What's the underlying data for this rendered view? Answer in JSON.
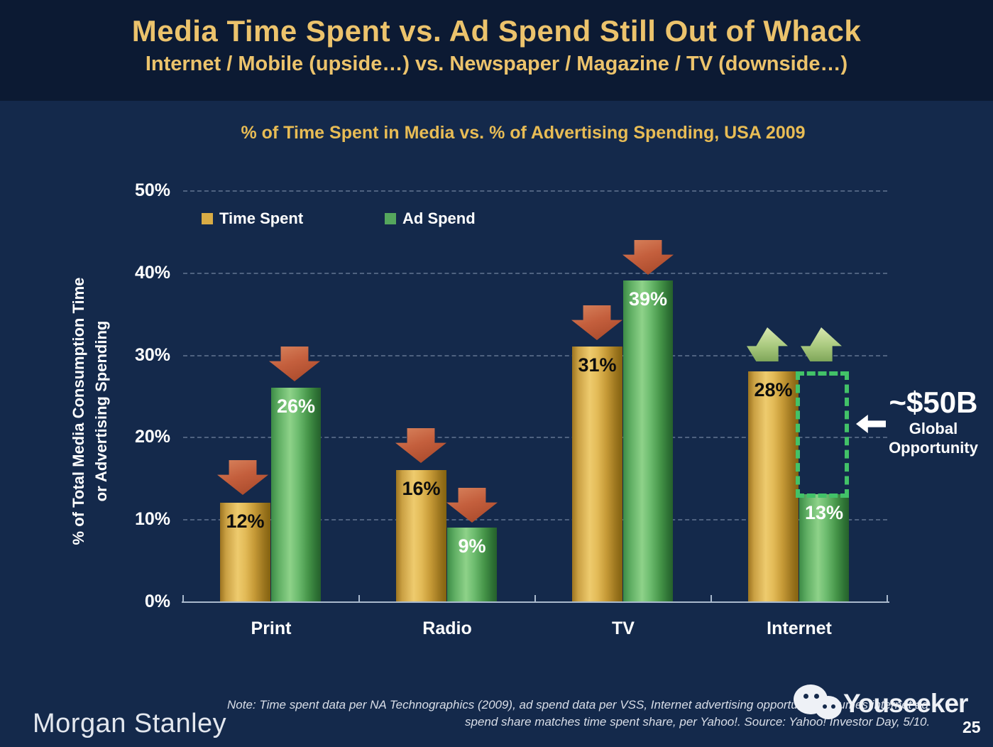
{
  "slide": {
    "title": "Media Time Spent vs. Ad Spend Still Out of Whack",
    "subtitle": "Internet / Mobile (upside…) vs. Newspaper / Magazine / TV (downside…)",
    "brand": "Morgan Stanley",
    "note_line1": "Note: Time spent data per NA Technographics (2009), ad spend data per VSS, Internet advertising opportunity assumes internet ad",
    "note_line2": "spend share matches time spent share, per Yahoo!. Source: Yahoo! Investor Day, 5/10.",
    "watermark": "Youseeker",
    "page_number": "25"
  },
  "chart_data": {
    "type": "bar",
    "title": "% of Time Spent in Media vs. % of Advertising Spending, USA 2009",
    "categories": [
      "Print",
      "Radio",
      "TV",
      "Internet"
    ],
    "series": [
      {
        "name": "Time Spent",
        "color": "#D9AC45",
        "values": [
          12,
          16,
          31,
          28
        ],
        "labels": [
          "12%",
          "16%",
          "31%",
          "28%"
        ]
      },
      {
        "name": "Ad Spend",
        "color": "#55A75D",
        "values": [
          26,
          9,
          39,
          13
        ],
        "labels": [
          "26%",
          "9%",
          "39%",
          "13%"
        ]
      }
    ],
    "ylabel_line1": "% of Total Media Consumption Time",
    "ylabel_line2": "or Advertising Spending",
    "ylim": [
      0,
      50
    ],
    "ytick_labels": [
      "50%",
      "40%",
      "30%",
      "20%",
      "10%",
      "0%"
    ],
    "grid": "horizontal dashed",
    "legend_position": "top-left inside plot",
    "trend_arrows": {
      "Print": "down",
      "Radio": "down",
      "TV": "down",
      "Internet": "up"
    },
    "annotation": {
      "value": "~$50B",
      "label_line1": "Global",
      "label_line2": "Opportunity"
    }
  }
}
